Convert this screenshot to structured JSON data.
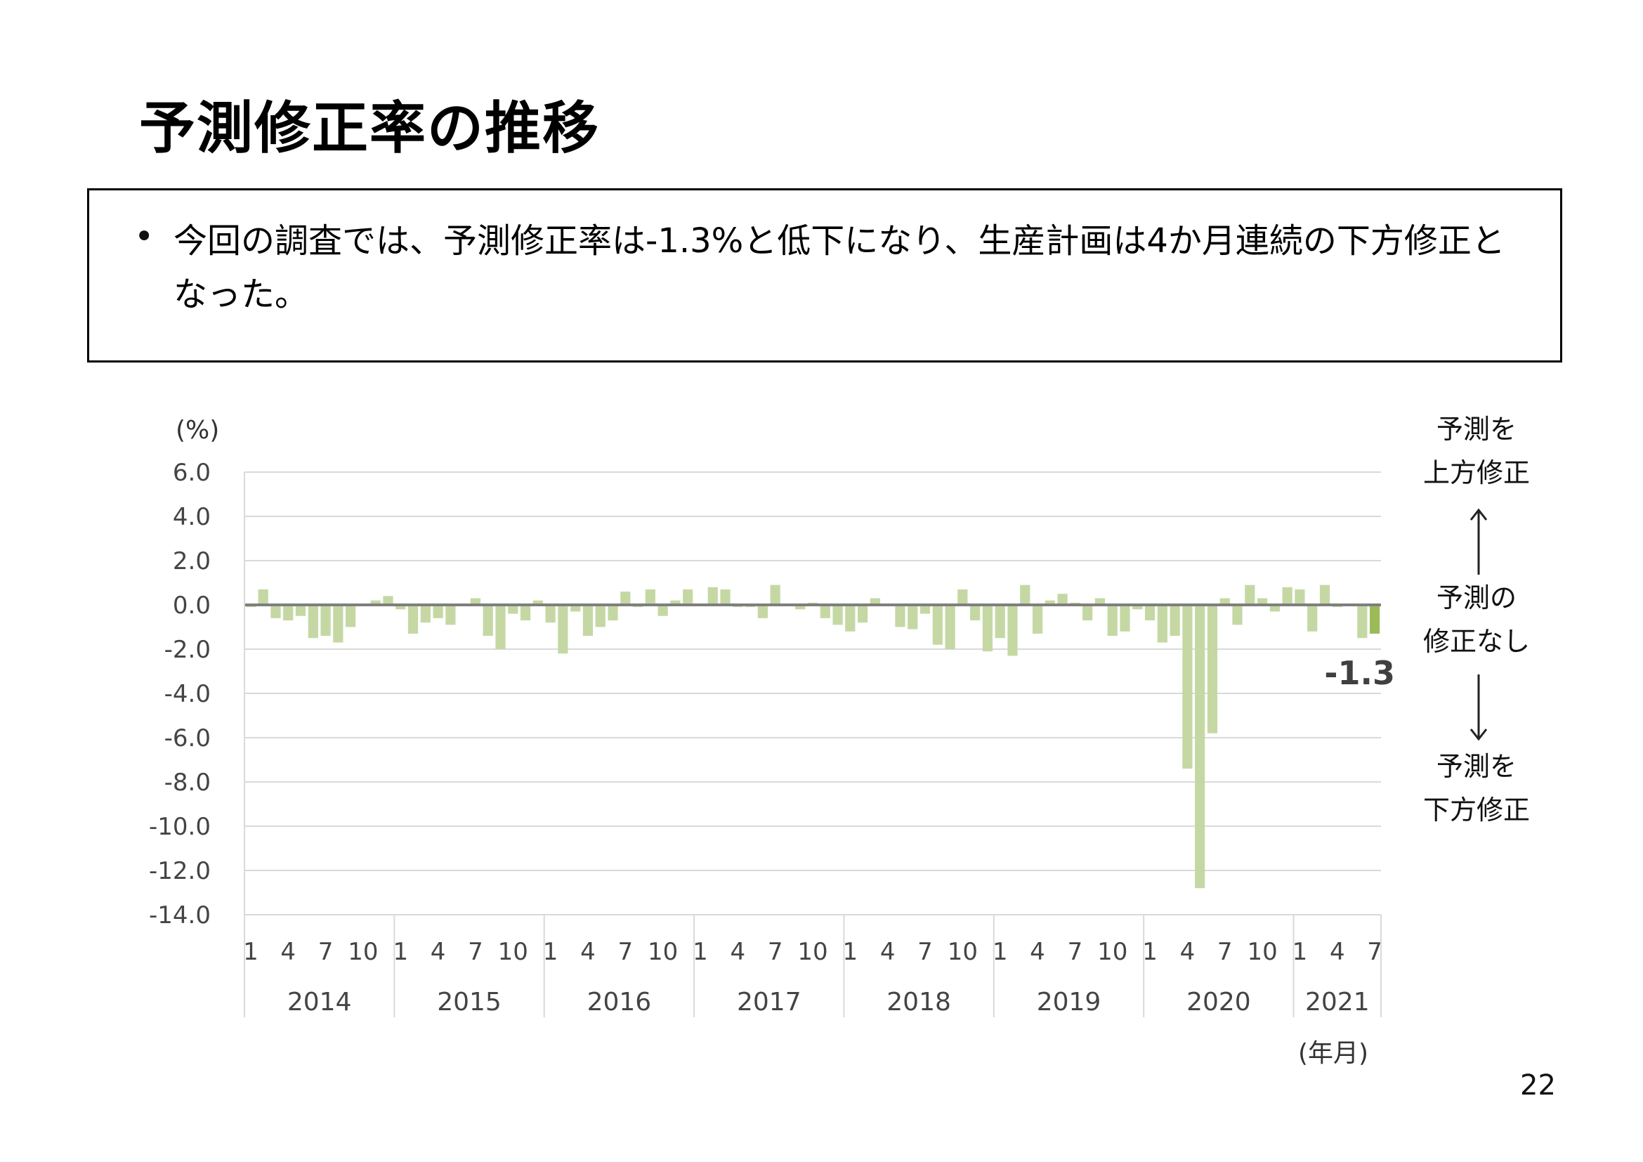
{
  "page": {
    "title": "予測修正率の推移",
    "summary": "今回の調査では、予測修正率は-1.3%と低下になり、生産計画は4か月連続の下方修正となった。",
    "bullet": "•",
    "page_number": "22"
  },
  "right_labels": {
    "up_line1": "予測を",
    "up_line2": "上方修正",
    "mid_line1": "予測の",
    "mid_line2": "修正なし",
    "down_line1": "予測を",
    "down_line2": "下方修正"
  },
  "chart_data": {
    "type": "bar",
    "ylabel": "(%)",
    "xlabel": "(年月)",
    "ylim": [
      -14,
      6
    ],
    "yticks": [
      6,
      4,
      2,
      0,
      -2,
      -4,
      -6,
      -8,
      -10,
      -12,
      -14
    ],
    "ytick_labels": [
      "6.0",
      "4.0",
      "2.0",
      "0.0",
      "-2.0",
      "-4.0",
      "-6.0",
      "-8.0",
      "-10.0",
      "-12.0",
      "-14.0"
    ],
    "grid": true,
    "month_tick_labels": [
      "1",
      "4",
      "7",
      "10"
    ],
    "years": [
      {
        "label": "2014",
        "months": 12
      },
      {
        "label": "2015",
        "months": 12
      },
      {
        "label": "2016",
        "months": 12
      },
      {
        "label": "2017",
        "months": 12
      },
      {
        "label": "2018",
        "months": 12
      },
      {
        "label": "2019",
        "months": 12
      },
      {
        "label": "2020",
        "months": 12
      },
      {
        "label": "2021",
        "months": 7
      }
    ],
    "values": [
      -0.1,
      0.7,
      -0.6,
      -0.7,
      -0.5,
      -1.5,
      -1.4,
      -1.7,
      -1.0,
      0.0,
      0.2,
      0.4,
      -0.2,
      -1.3,
      -0.8,
      -0.6,
      -0.9,
      0.0,
      0.3,
      -1.4,
      -2.0,
      -0.4,
      -0.7,
      0.2,
      -0.8,
      -2.2,
      -0.3,
      -1.4,
      -1.0,
      -0.7,
      0.6,
      -0.1,
      0.7,
      -0.5,
      0.2,
      0.7,
      0.0,
      0.8,
      0.7,
      -0.1,
      -0.1,
      -0.6,
      0.9,
      0.0,
      -0.2,
      0.1,
      -0.6,
      -0.9,
      -1.2,
      -0.8,
      0.3,
      0.0,
      -1.0,
      -1.1,
      -0.4,
      -1.8,
      -2.0,
      0.7,
      -0.7,
      -2.1,
      -1.5,
      -2.3,
      0.9,
      -1.3,
      0.2,
      0.5,
      0.1,
      -0.7,
      0.3,
      -1.4,
      -1.2,
      -0.2,
      -0.7,
      -1.7,
      -1.4,
      -7.4,
      -12.8,
      -5.8,
      0.3,
      -0.9,
      0.9,
      0.3,
      -0.3,
      0.8,
      0.7,
      -1.2,
      0.9,
      -0.1,
      0.0,
      -1.5,
      -1.3
    ],
    "latest_label": "-1.3",
    "colors": {
      "bar": "#c5d8a4",
      "latest_bar": "#9bbb59",
      "zero_line": "#7f7f7f",
      "grid": "#d9d9d9",
      "axis_text": "#444444"
    }
  }
}
